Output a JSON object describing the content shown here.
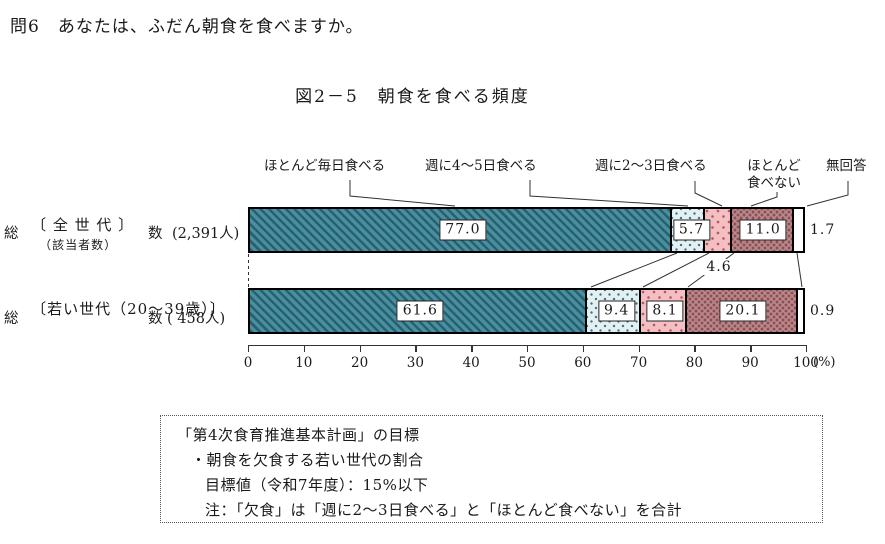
{
  "question": "問6　あなたは、ふだん朝食を食べますか。",
  "figure_title": "図2－5　朝食を食べる頻度",
  "legend": {
    "items": [
      "ほとんど毎日食べる",
      "週に4〜5日食べる",
      "週に2〜3日食べる",
      "ほとんど\n食べない",
      "無回答"
    ]
  },
  "groups": [
    {
      "heading": "〔 全 世 代 〕",
      "subheading": "（該当者数）",
      "row_left": "総",
      "row_right": "数",
      "count": "(2,391人)"
    },
    {
      "heading": "〔若い世代（20〜39歳）〕",
      "subheading": "",
      "row_left": "総",
      "row_right": "数",
      "count": "( 458人)"
    }
  ],
  "chart_data": {
    "type": "bar",
    "orientation": "horizontal",
    "stacked": true,
    "unit": "%",
    "title": "図2－5　朝食を食べる頻度",
    "series_labels": [
      "ほとんど毎日食べる",
      "週に4〜5日食べる",
      "週に2〜3日食べる",
      "ほとんど食べない",
      "無回答"
    ],
    "rows": [
      {
        "group": "全世代",
        "row_label": "総数",
        "n": "2,391人",
        "values": [
          77.0,
          5.7,
          4.6,
          11.0,
          1.7
        ]
      },
      {
        "group": "若い世代（20〜39歳）",
        "row_label": "総数",
        "n": "458人",
        "values": [
          61.6,
          9.4,
          8.1,
          20.1,
          0.9
        ]
      }
    ],
    "value_labels": [
      [
        "77.0",
        "5.7",
        "4.6",
        "11.0",
        "1.7"
      ],
      [
        "61.6",
        "9.4",
        "8.1",
        "20.1",
        "0.9"
      ]
    ],
    "x_ticks": [
      "0",
      "10",
      "20",
      "30",
      "40",
      "50",
      "60",
      "70",
      "80",
      "90",
      "100"
    ],
    "x_max": 100,
    "x_unit_label": "(%)",
    "grid": false,
    "legend_position": "top"
  },
  "note_box": {
    "lines": [
      "「第4次食育推進基本計画」の目標",
      "・朝食を欠食する若い世代の割合",
      "目標値（令和7年度）：15%以下",
      "注：「欠食」は「週に2〜3日食べる」と「ほとんど食べない」を合計"
    ]
  },
  "colors": {
    "daily_base": "#47909f",
    "daily_stripe": "#2b5f6f",
    "week45_base": "#e3f0f2",
    "week45_dot": "#44707c",
    "week23_base": "#f3bfc2",
    "week23_dot": "#b9555c",
    "rarely_base": "#bd898c",
    "rarely_dot": "#8a5256",
    "no_answer": "#ffffff",
    "line": "#333333"
  }
}
